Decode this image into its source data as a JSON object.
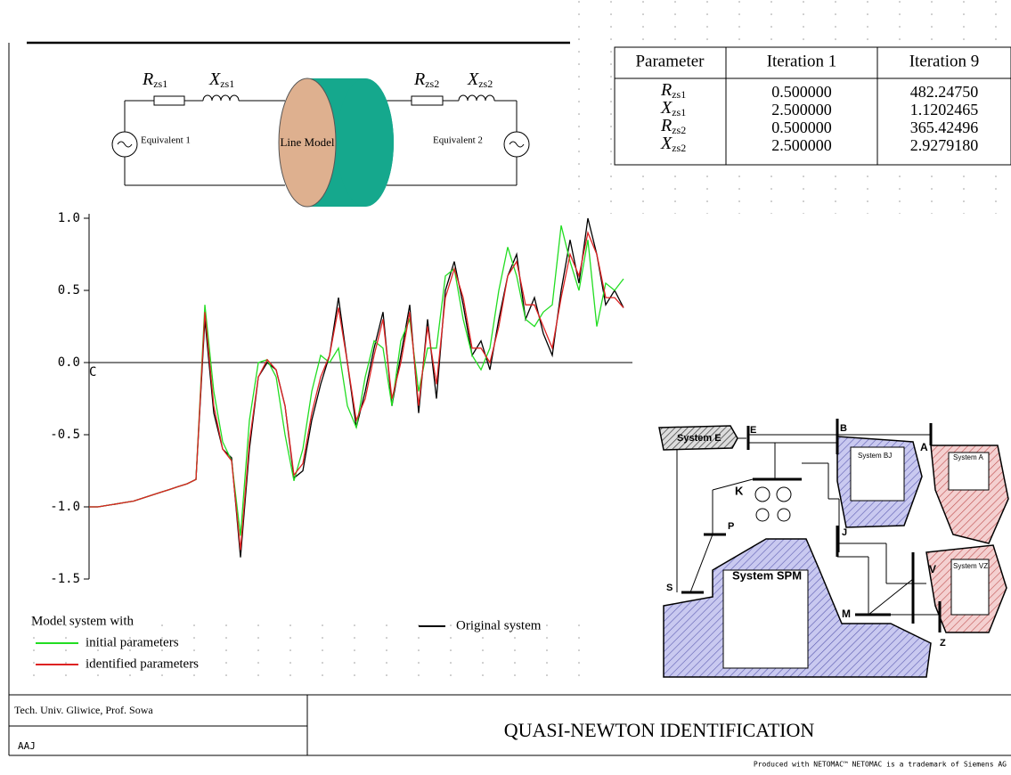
{
  "circuit": {
    "rzs1": {
      "main": "R",
      "sub": "zs1"
    },
    "xzs1": {
      "main": "X",
      "sub": "zs1"
    },
    "rzs2": {
      "main": "R",
      "sub": "zs2"
    },
    "xzs2": {
      "main": "X",
      "sub": "zs2"
    },
    "source1": "Equivalent 1",
    "line": "Line Model",
    "source2": "Equivalent 2"
  },
  "table": {
    "header": [
      "Parameter",
      "Iteration 1",
      "Iteration 9"
    ],
    "rows": [
      [
        {
          "main": "R",
          "sub": "zs1"
        },
        "0.500000",
        "482.24750"
      ],
      [
        {
          "main": "X",
          "sub": "zs1"
        },
        "2.500000",
        "1.1202465"
      ],
      [
        {
          "main": "R",
          "sub": "zs2"
        },
        "0.500000",
        "365.42496"
      ],
      [
        {
          "main": "X",
          "sub": "zs2"
        },
        "2.500000",
        "2.9279180"
      ]
    ]
  },
  "chart_data": {
    "type": "line",
    "ylim": [
      -1.5,
      1.0
    ],
    "yticks": [
      {
        "value": 1.0,
        "label": "1.0"
      },
      {
        "value": 0.5,
        "label": "0.5"
      },
      {
        "value": 0,
        "label": "0.0"
      },
      {
        "value": -0.5,
        "label": "-0.5"
      },
      {
        "value": -1.0,
        "label": "-1.0"
      },
      {
        "value": -1.5,
        "label": "-1.5"
      }
    ],
    "annotation": "C",
    "legend_title": "Model system with",
    "series": [
      {
        "name": "Original system",
        "color": "#000000",
        "values": [
          -1.0,
          -1.0,
          -0.99,
          -0.98,
          -0.97,
          -0.96,
          -0.94,
          -0.92,
          -0.9,
          -0.88,
          -0.86,
          -0.84,
          -0.81,
          0.3,
          -0.35,
          -0.6,
          -0.66,
          -1.35,
          -0.6,
          -0.1,
          0.0,
          -0.05,
          -0.3,
          -0.8,
          -0.75,
          -0.4,
          -0.15,
          0.05,
          0.45,
          0.0,
          -0.45,
          -0.2,
          0.1,
          0.35,
          -0.3,
          0.05,
          0.4,
          -0.35,
          0.3,
          -0.25,
          0.5,
          0.7,
          0.4,
          0.05,
          0.15,
          -0.05,
          0.3,
          0.6,
          0.75,
          0.3,
          0.45,
          0.2,
          0.05,
          0.5,
          0.85,
          0.55,
          1.0,
          0.75,
          0.4,
          0.5,
          0.38
        ]
      },
      {
        "name": "initial parameters",
        "color": "#22dd22",
        "values": [
          -1.0,
          -1.0,
          -0.99,
          -0.98,
          -0.97,
          -0.96,
          -0.94,
          -0.92,
          -0.9,
          -0.88,
          -0.86,
          -0.84,
          -0.81,
          0.4,
          -0.2,
          -0.55,
          -0.68,
          -1.2,
          -0.4,
          0.0,
          0.02,
          -0.1,
          -0.5,
          -0.82,
          -0.6,
          -0.2,
          0.05,
          0.0,
          0.1,
          -0.3,
          -0.45,
          -0.1,
          0.15,
          0.1,
          -0.3,
          0.15,
          0.3,
          -0.2,
          0.1,
          0.1,
          0.6,
          0.65,
          0.3,
          0.05,
          -0.05,
          0.1,
          0.5,
          0.8,
          0.6,
          0.3,
          0.25,
          0.35,
          0.4,
          0.95,
          0.7,
          0.5,
          0.85,
          0.25,
          0.55,
          0.5,
          0.58
        ]
      },
      {
        "name": "identified parameters",
        "color": "#dd2222",
        "values": [
          -1.0,
          -1.0,
          -0.99,
          -0.98,
          -0.97,
          -0.96,
          -0.94,
          -0.92,
          -0.9,
          -0.88,
          -0.86,
          -0.84,
          -0.81,
          0.35,
          -0.3,
          -0.6,
          -0.68,
          -1.3,
          -0.55,
          -0.1,
          0.02,
          -0.05,
          -0.3,
          -0.78,
          -0.7,
          -0.35,
          -0.1,
          0.05,
          0.38,
          0.0,
          -0.4,
          -0.25,
          0.05,
          0.3,
          -0.25,
          0.0,
          0.35,
          -0.3,
          0.25,
          -0.15,
          0.45,
          0.65,
          0.45,
          0.1,
          0.1,
          0.0,
          0.25,
          0.6,
          0.7,
          0.4,
          0.4,
          0.25,
          0.1,
          0.45,
          0.75,
          0.6,
          0.9,
          0.75,
          0.45,
          0.45,
          0.38
        ]
      }
    ]
  },
  "network": {
    "labels": [
      "System E",
      "E",
      "B",
      "A",
      "System BJ",
      "System A",
      "K",
      "P",
      "J",
      "V",
      "System VZ",
      "S",
      "System SPM",
      "M",
      "Z"
    ]
  },
  "footer": {
    "institution": "Tech. Univ. Gliwice, Prof. Sowa",
    "code": "AAJ",
    "title": "QUASI-NEWTON IDENTIFICATION",
    "credit": "Produced with NETOMAC™   NETOMAC is a trademark of Siemens AG"
  }
}
